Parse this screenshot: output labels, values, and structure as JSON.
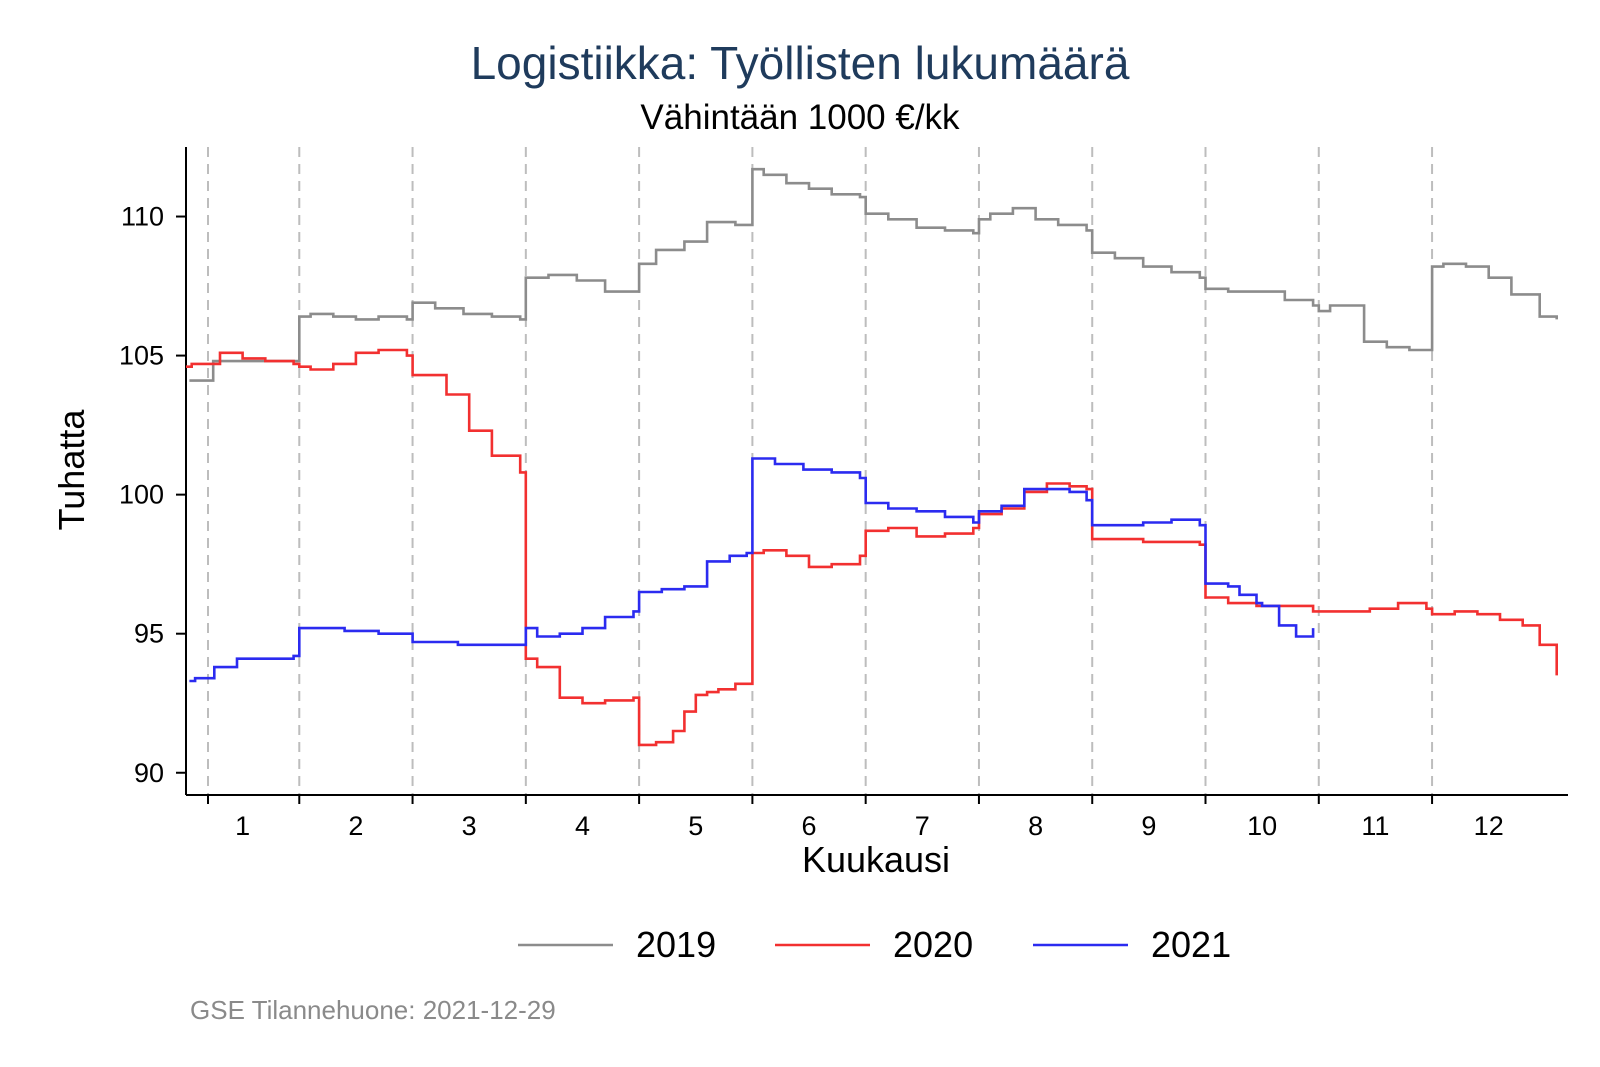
{
  "chart_data": {
    "type": "line",
    "title": "Logistiikka: Työllisten lukumäärä",
    "subtitle": "Vähintään 1000 €/kk",
    "xlabel": "Kuukausi",
    "ylabel": "Tuhatta",
    "xlim": [
      0.5,
      12.7
    ],
    "ylim": [
      89.2,
      112.5
    ],
    "y_ticks": [
      90,
      95,
      100,
      105,
      110
    ],
    "x_ticks": [
      1,
      2,
      3,
      4,
      5,
      6,
      7,
      8,
      9,
      10,
      11,
      12
    ],
    "month_boundaries": [
      0.5,
      1.5,
      2.5,
      3.5,
      4.5,
      5.5,
      6.5,
      7.5,
      8.5,
      9.5,
      10.5,
      11.5
    ],
    "grid": false,
    "legend_position": "bottom",
    "line_shape": "step",
    "series": [
      {
        "name": "2019",
        "color": "#8c8c8c",
        "x": [
          0.53,
          0.57,
          0.74,
          0.98,
          1.2,
          1.45,
          1.5,
          1.6,
          1.8,
          2.0,
          2.2,
          2.45,
          2.5,
          2.7,
          2.95,
          3.2,
          3.45,
          3.5,
          3.7,
          3.95,
          4.2,
          4.45,
          4.5,
          4.65,
          4.9,
          5.1,
          5.35,
          5.5,
          5.6,
          5.8,
          6.0,
          6.2,
          6.45,
          6.5,
          6.7,
          6.95,
          7.2,
          7.45,
          7.5,
          7.6,
          7.8,
          8.0,
          8.2,
          8.45,
          8.5,
          8.7,
          8.95,
          9.2,
          9.45,
          9.5,
          9.7,
          9.95,
          10.2,
          10.45,
          10.5,
          10.6,
          10.85,
          10.9,
          11.1,
          11.3,
          11.45,
          11.5,
          11.6,
          11.8,
          12.0,
          12.2,
          12.45,
          12.6
        ],
        "values": [
          104.1,
          104.1,
          104.8,
          104.8,
          104.8,
          104.8,
          106.4,
          106.5,
          106.4,
          106.3,
          106.4,
          106.3,
          106.9,
          106.7,
          106.5,
          106.4,
          106.3,
          107.8,
          107.9,
          107.7,
          107.3,
          107.3,
          108.3,
          108.8,
          109.1,
          109.8,
          109.7,
          111.7,
          111.5,
          111.2,
          111.0,
          110.8,
          110.7,
          110.1,
          109.9,
          109.6,
          109.5,
          109.4,
          109.9,
          110.1,
          110.3,
          109.9,
          109.7,
          109.5,
          108.7,
          108.5,
          108.2,
          108.0,
          107.8,
          107.4,
          107.3,
          107.3,
          107.0,
          106.8,
          106.6,
          106.8,
          106.8,
          105.5,
          105.3,
          105.2,
          105.2,
          108.2,
          108.3,
          108.2,
          107.8,
          107.2,
          106.4,
          106.3
        ]
      },
      {
        "name": "2020",
        "color": "#f23030",
        "x": [
          0.5,
          0.55,
          0.8,
          1.0,
          1.2,
          1.45,
          1.5,
          1.6,
          1.8,
          2.0,
          2.2,
          2.45,
          2.5,
          2.6,
          2.8,
          3.0,
          3.2,
          3.45,
          3.5,
          3.6,
          3.8,
          4.0,
          4.2,
          4.45,
          4.5,
          4.65,
          4.8,
          4.9,
          5.0,
          5.1,
          5.2,
          5.35,
          5.5,
          5.6,
          5.8,
          6.0,
          6.2,
          6.45,
          6.5,
          6.7,
          6.95,
          7.2,
          7.45,
          7.5,
          7.7,
          7.9,
          8.1,
          8.3,
          8.45,
          8.5,
          8.7,
          8.95,
          9.2,
          9.45,
          9.5,
          9.7,
          9.95,
          10.2,
          10.45,
          10.5,
          10.7,
          10.95,
          11.2,
          11.45,
          11.5,
          11.7,
          11.9,
          12.1,
          12.3,
          12.45,
          12.6
        ],
        "values": [
          104.6,
          104.7,
          105.1,
          104.9,
          104.8,
          104.7,
          104.6,
          104.5,
          104.7,
          105.1,
          105.2,
          105.0,
          104.3,
          104.3,
          103.6,
          102.3,
          101.4,
          100.8,
          94.1,
          93.8,
          92.7,
          92.5,
          92.6,
          92.7,
          91.0,
          91.1,
          91.5,
          92.2,
          92.8,
          92.9,
          93.0,
          93.2,
          97.9,
          98.0,
          97.8,
          97.4,
          97.5,
          97.8,
          98.7,
          98.8,
          98.5,
          98.6,
          98.8,
          99.3,
          99.5,
          100.1,
          100.4,
          100.3,
          100.2,
          98.4,
          98.4,
          98.3,
          98.3,
          98.2,
          96.3,
          96.1,
          96.0,
          96.0,
          95.8,
          95.8,
          95.8,
          95.9,
          96.1,
          95.9,
          95.7,
          95.8,
          95.7,
          95.5,
          95.3,
          94.6,
          93.5
        ]
      },
      {
        "name": "2021",
        "color": "#2b2bf0",
        "x": [
          0.53,
          0.58,
          0.75,
          0.95,
          1.2,
          1.45,
          1.5,
          1.6,
          1.9,
          2.2,
          2.45,
          2.5,
          2.7,
          2.9,
          3.2,
          3.45,
          3.5,
          3.6,
          3.8,
          4.0,
          4.2,
          4.45,
          4.5,
          4.7,
          4.9,
          5.1,
          5.3,
          5.45,
          5.5,
          5.7,
          5.95,
          6.2,
          6.45,
          6.5,
          6.7,
          6.95,
          7.2,
          7.45,
          7.5,
          7.7,
          7.9,
          8.1,
          8.3,
          8.45,
          8.5,
          8.7,
          8.95,
          9.2,
          9.45,
          9.5,
          9.7,
          9.8,
          9.95,
          10.0,
          10.15,
          10.3,
          10.45
        ],
        "values": [
          93.3,
          93.4,
          93.8,
          94.1,
          94.1,
          94.2,
          95.2,
          95.2,
          95.1,
          95.0,
          95.0,
          94.7,
          94.7,
          94.6,
          94.6,
          94.6,
          95.2,
          94.9,
          95.0,
          95.2,
          95.6,
          95.8,
          96.5,
          96.6,
          96.7,
          97.6,
          97.8,
          97.9,
          101.3,
          101.1,
          100.9,
          100.8,
          100.6,
          99.7,
          99.5,
          99.4,
          99.2,
          99.0,
          99.4,
          99.6,
          100.2,
          100.2,
          100.1,
          99.8,
          98.9,
          98.9,
          99.0,
          99.1,
          98.9,
          96.8,
          96.7,
          96.4,
          96.1,
          96.0,
          95.3,
          94.9,
          95.2
        ]
      }
    ],
    "legend": [
      "2019",
      "2020",
      "2021"
    ]
  },
  "source_note": "GSE Tilannehuone: 2021-12-29"
}
